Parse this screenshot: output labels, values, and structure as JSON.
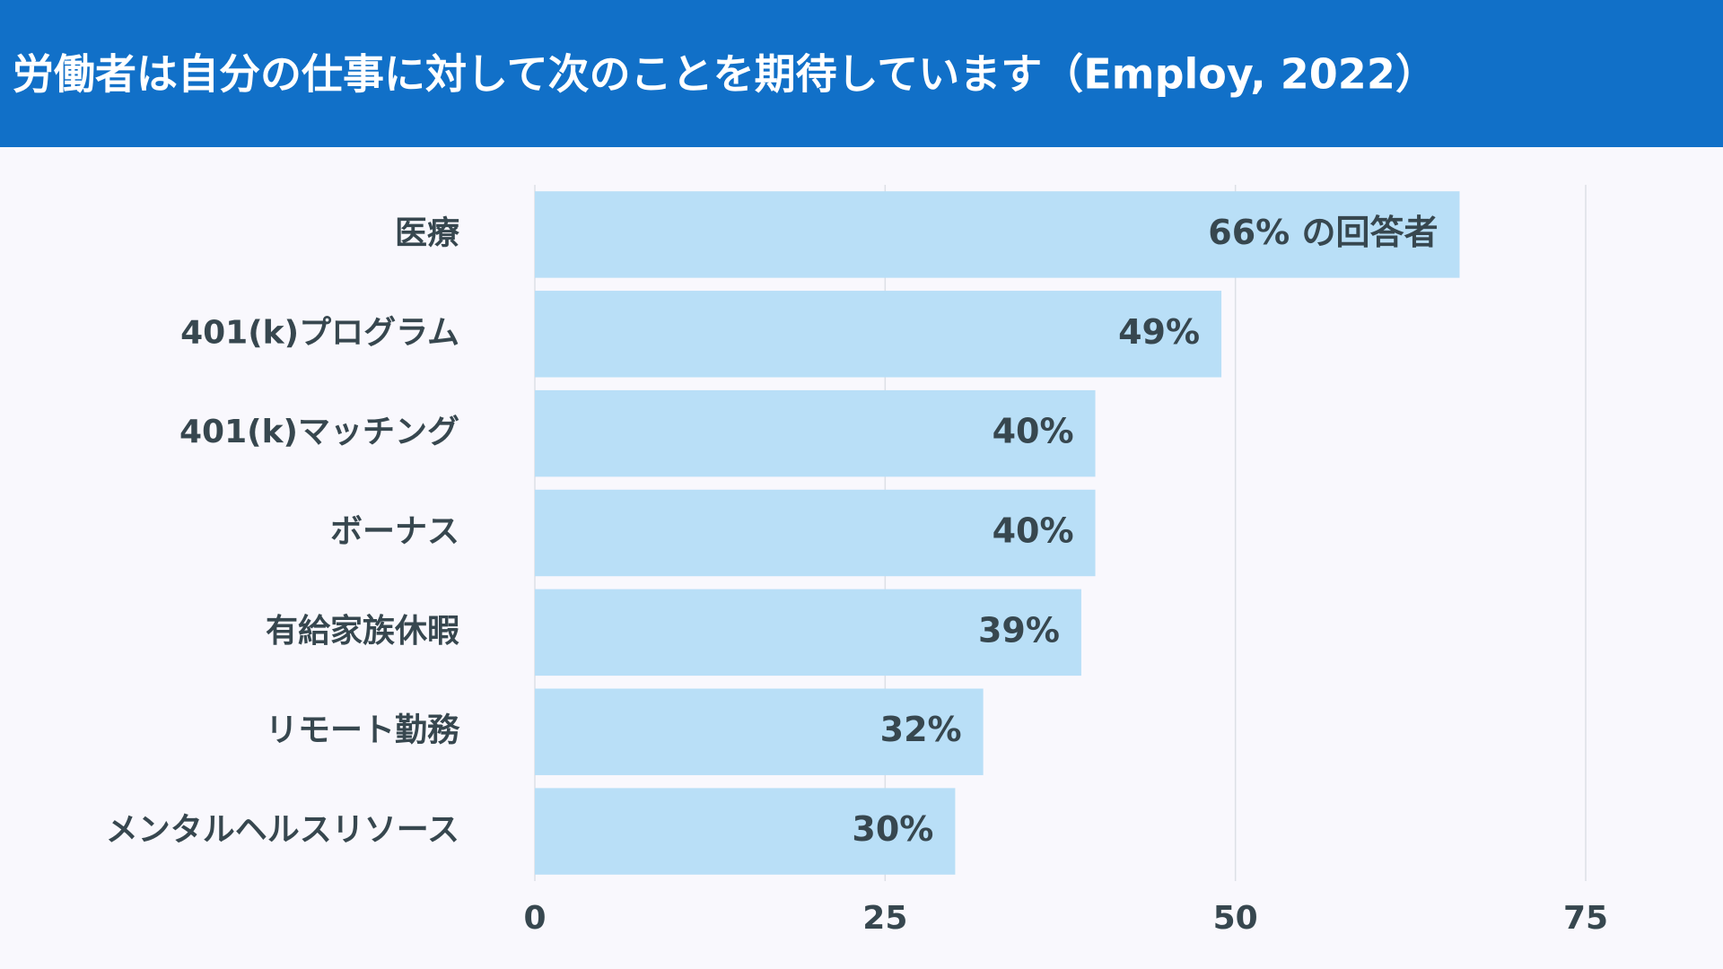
{
  "chart_data": {
    "type": "bar",
    "orientation": "horizontal",
    "title": "労働者は自分の仕事に対して次のことを期待しています（Employ, 2022）",
    "categories": [
      "医療",
      "401(k)プログラム",
      "401(k)マッチング",
      "ボーナス",
      "有給家族休暇",
      "リモート勤務",
      "メンタルヘルスリソース"
    ],
    "values": [
      66,
      49,
      40,
      40,
      39,
      32,
      30
    ],
    "value_labels": [
      "66% の回答者",
      "49%",
      "40%",
      "40%",
      "39%",
      "32%",
      "30%"
    ],
    "color": "#b9dff7",
    "xlim": [
      0,
      75
    ],
    "xticks": [
      0,
      25,
      50,
      75
    ],
    "grid": true
  }
}
